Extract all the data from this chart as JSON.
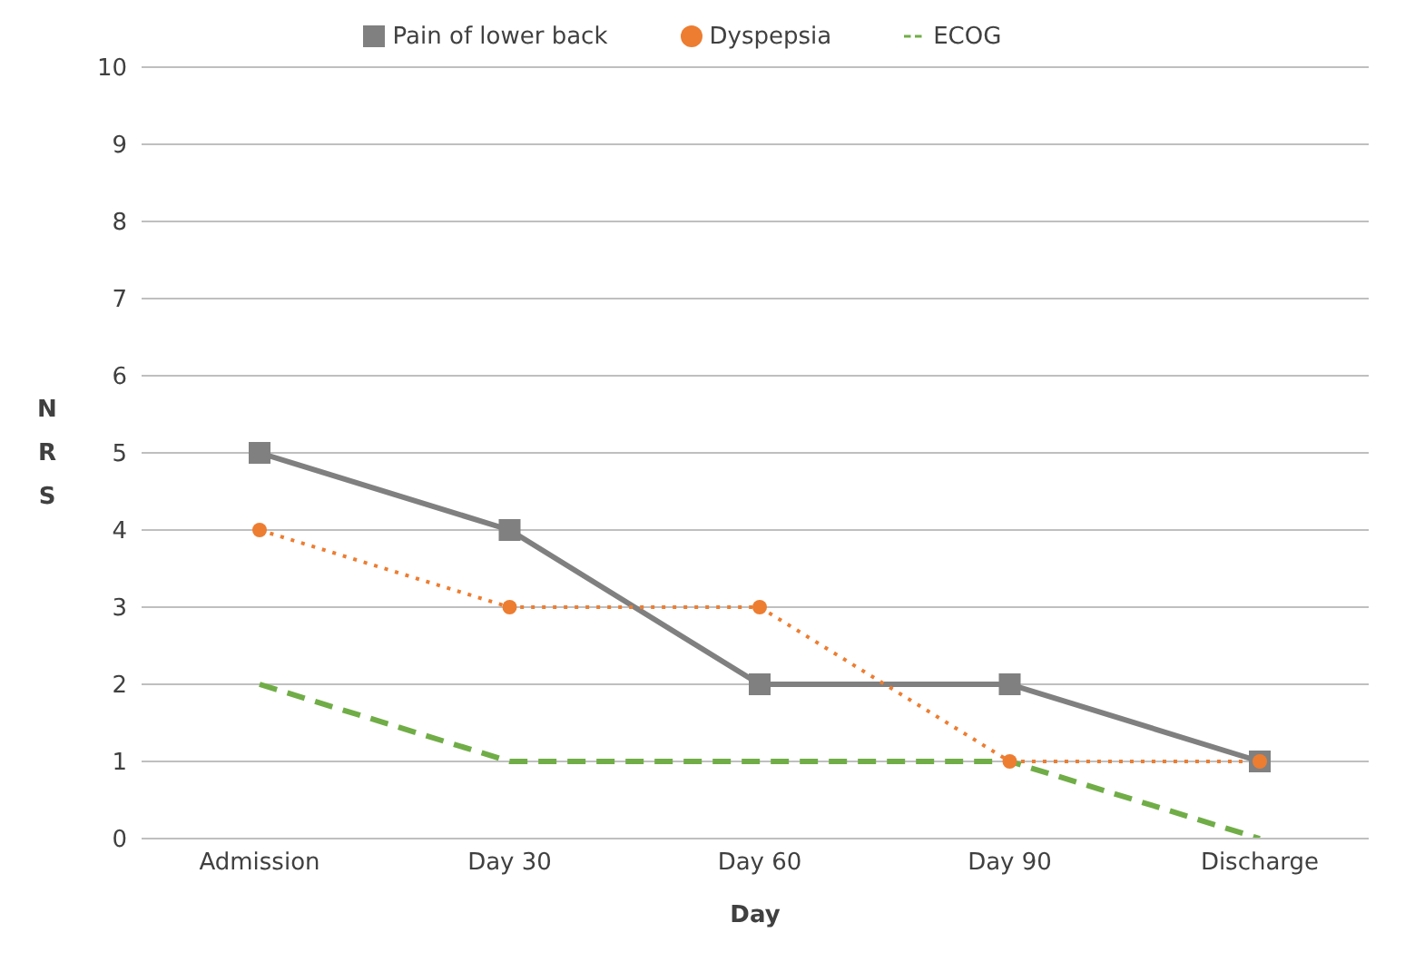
{
  "chart_data": {
    "type": "line",
    "xlabel": "Day",
    "ylabel": "NRS",
    "categories": [
      "Admission",
      "Day 30",
      "Day 60",
      "Day 90",
      "Discharge"
    ],
    "series": [
      {
        "name": "Pain of lower back",
        "color": "#808080",
        "values": [
          5,
          4,
          2,
          2,
          1
        ],
        "marker": "square",
        "line_style": "solid"
      },
      {
        "name": "Dyspepsia",
        "color": "#ed7d31",
        "values": [
          4,
          3,
          3,
          1,
          1
        ],
        "marker": "circle",
        "line_style": "dotted"
      },
      {
        "name": "ECOG",
        "color": "#70ad47",
        "values": [
          2,
          1,
          1,
          1,
          0
        ],
        "marker": "none",
        "line_style": "dashed"
      }
    ],
    "ylim": [
      0,
      10
    ],
    "yticks": [
      0,
      1,
      2,
      3,
      4,
      5,
      6,
      7,
      8,
      9,
      10
    ],
    "grid": "y",
    "legend": "top"
  }
}
